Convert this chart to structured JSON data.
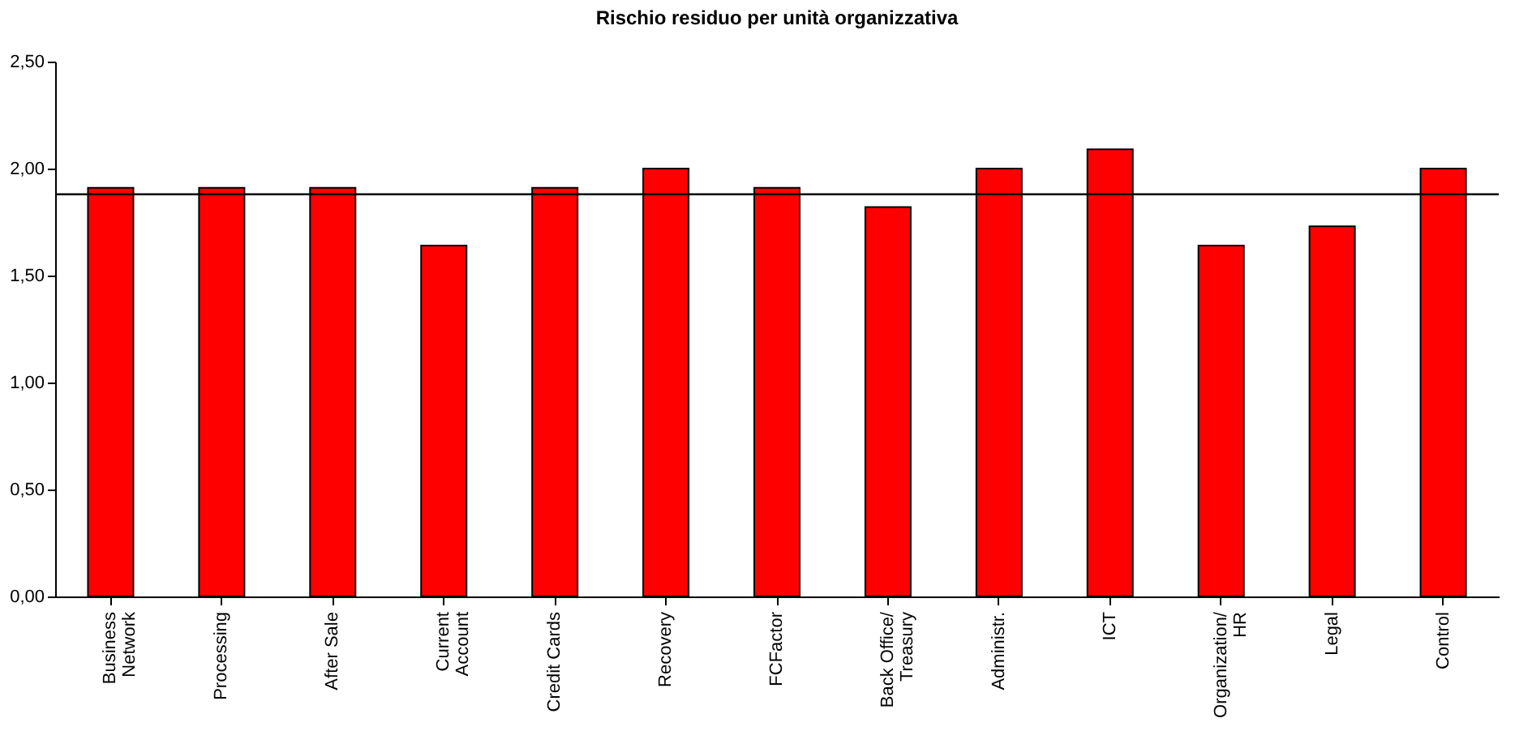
{
  "chart_data": {
    "type": "bar",
    "title": "Rischio residuo per unità organizzativa",
    "categories": [
      "Business\nNetwork",
      "Processing",
      "After Sale",
      "Current\nAccount",
      "Credit Cards",
      "Recovery",
      "FCFactor",
      "Back Office/\nTreasury",
      "Administr.",
      "ICT",
      "Organization/\nHR",
      "Legal",
      "Control"
    ],
    "values": [
      1.91,
      1.91,
      1.91,
      1.64,
      1.91,
      2.0,
      1.91,
      1.82,
      2.0,
      2.09,
      1.64,
      1.73,
      2.0
    ],
    "color": "#ff0000",
    "ylim": [
      0,
      2.5
    ],
    "yticks": [
      {
        "value": 0,
        "label": "0,00"
      },
      {
        "value": 0.5,
        "label": "0,50"
      },
      {
        "value": 1,
        "label": "1,00"
      },
      {
        "value": 1.5,
        "label": "1,50"
      },
      {
        "value": 2,
        "label": "2,00"
      },
      {
        "value": 2.5,
        "label": "2,50"
      }
    ],
    "ref_lines": [
      {
        "axis": "y",
        "value": 1.88,
        "color": "#000000"
      }
    ],
    "grid": false
  }
}
